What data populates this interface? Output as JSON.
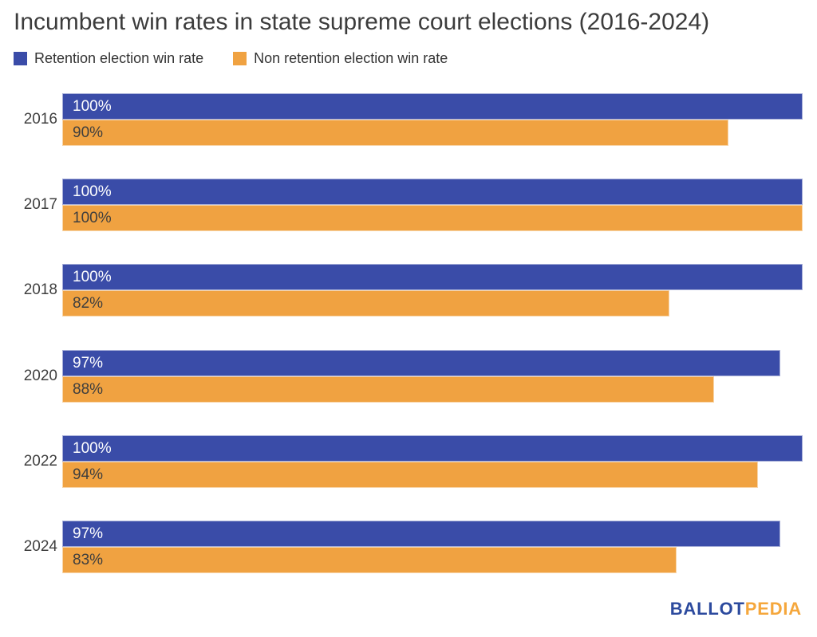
{
  "title": "Incumbent win rates in state supreme court elections (2016-2024)",
  "legend": {
    "items": [
      {
        "label": "Retention election win rate",
        "color": "#3a4ca8"
      },
      {
        "label": "Non retention election win rate",
        "color": "#f0a241"
      }
    ]
  },
  "branding": {
    "part1": "BALLOT",
    "part2": "PEDIA",
    "part1_color": "#2c4a9e",
    "part2_color": "#f5a73c"
  },
  "colors": {
    "retention_bar": "#3a4ca8",
    "non_retention_bar": "#f0a241",
    "label_on_blue": "#ffffff",
    "label_on_orange": "#3e3e3e",
    "title_text": "#3c3c3c",
    "axis_text": "#3f3f3f",
    "background": "#ffffff"
  },
  "chart_data": {
    "type": "bar",
    "orientation": "horizontal",
    "title": "Incumbent win rates in state supreme court elections (2016-2024)",
    "categories": [
      "2016",
      "2017",
      "2018",
      "2020",
      "2022",
      "2024"
    ],
    "series": [
      {
        "name": "Retention election win rate",
        "color": "#3a4ca8",
        "values": [
          100,
          100,
          100,
          97,
          100,
          97
        ],
        "labels": [
          "100%",
          "100%",
          "100%",
          "97%",
          "100%",
          "97%"
        ]
      },
      {
        "name": "Non retention election win rate",
        "color": "#f0a241",
        "values": [
          90,
          100,
          82,
          88,
          94,
          83
        ],
        "labels": [
          "90%",
          "100%",
          "82%",
          "88%",
          "94%",
          "83%"
        ]
      }
    ],
    "xlabel": "",
    "ylabel": "",
    "xlim": [
      0,
      100
    ],
    "grid": false,
    "legend_position": "top-left",
    "data_labels": "inside-start"
  }
}
